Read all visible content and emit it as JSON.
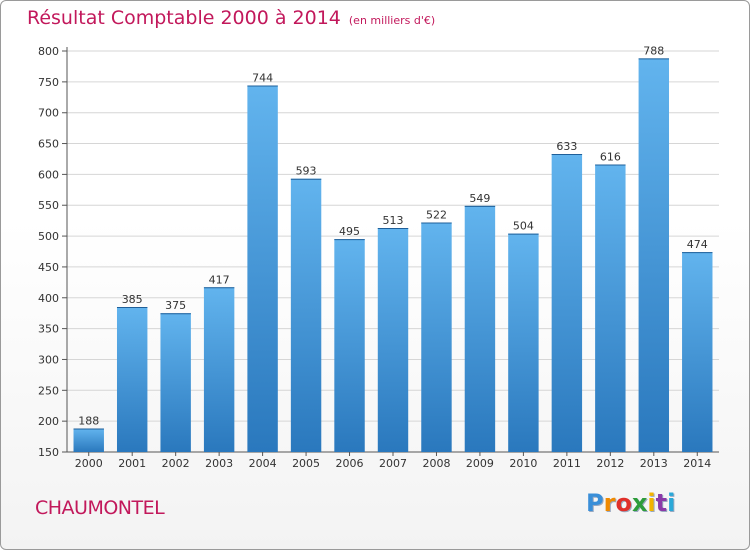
{
  "header": {
    "title": "Résultat Comptable 2000 à 2014",
    "subtitle": "(en milliers d'€)"
  },
  "footer": {
    "commune": "CHAUMONTEL",
    "logo_letters": [
      "P",
      "r",
      "o",
      "x",
      "i",
      "t",
      "i"
    ],
    "logo_colors": [
      "#3a8fd8",
      "#f08a00",
      "#e0302a",
      "#2d9c3a",
      "#f2b400",
      "#8b3aa8",
      "#2aa8d8"
    ]
  },
  "colors": {
    "bar": "#3c8fd3",
    "bar_light": "#5eb0ea",
    "grid": "#d4d4d4",
    "title": "#c2185b"
  },
  "chart_data": {
    "type": "bar",
    "title": "Résultat Comptable 2000 à 2014",
    "subtitle": "(en milliers d'€)",
    "xlabel": "",
    "ylabel": "",
    "categories": [
      "2000",
      "2001",
      "2002",
      "2003",
      "2004",
      "2005",
      "2006",
      "2007",
      "2008",
      "2009",
      "2010",
      "2011",
      "2012",
      "2013",
      "2014"
    ],
    "values": [
      188,
      385,
      375,
      417,
      744,
      593,
      495,
      513,
      522,
      549,
      504,
      633,
      616,
      788,
      474
    ],
    "ylim": [
      150,
      800
    ],
    "yticks": [
      150,
      200,
      250,
      300,
      350,
      400,
      450,
      500,
      550,
      600,
      650,
      700,
      750,
      800
    ],
    "grid": true,
    "legend": "none"
  }
}
